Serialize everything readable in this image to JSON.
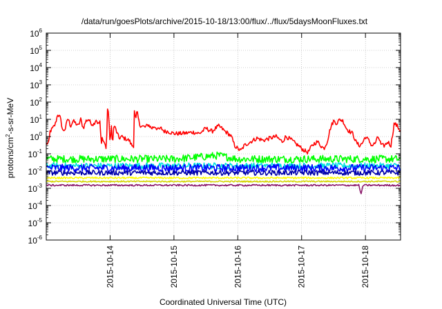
{
  "chart_data": {
    "type": "line",
    "title": "/data/run/goesPlots/archive/2015-10-18/13:00/flux/../flux/5daysMoonFluxes.txt",
    "xlabel": "Coordinated Universal Time (UTC)",
    "ylabel": {
      "base": "protons/cm",
      "sup": "2",
      "suffix": "-s-sr-MeV"
    },
    "y_scale": "log",
    "ylim_exponents": [
      -6,
      6
    ],
    "y_tick_labels": [
      {
        "base": "10",
        "exp": "-6"
      },
      {
        "base": "10",
        "exp": "-5"
      },
      {
        "base": "10",
        "exp": "-4"
      },
      {
        "base": "10",
        "exp": "-3"
      },
      {
        "base": "10",
        "exp": "-2"
      },
      {
        "base": "10",
        "exp": "-1"
      },
      {
        "base": "10",
        "exp": "0"
      },
      {
        "base": "10",
        "exp": "1"
      },
      {
        "base": "10",
        "exp": "2"
      },
      {
        "base": "10",
        "exp": "3"
      },
      {
        "base": "10",
        "exp": "4"
      },
      {
        "base": "10",
        "exp": "5"
      },
      {
        "base": "10",
        "exp": "6"
      }
    ],
    "xlim_days": [
      0,
      5.55
    ],
    "x_ticks": [
      {
        "label": "2015-10-14",
        "day": 1
      },
      {
        "label": "2015-10-15",
        "day": 2
      },
      {
        "label": "2015-10-16",
        "day": 3
      },
      {
        "label": "2015-10-17",
        "day": 4
      },
      {
        "label": "2015-10-18",
        "day": 5
      }
    ],
    "grid": true,
    "legend": "none",
    "series": [
      {
        "color": "#ff0000",
        "noise": 0.12,
        "points": [
          [
            0,
            0.4
          ],
          [
            0.04,
            0.4
          ],
          [
            0.06,
            2
          ],
          [
            0.1,
            3
          ],
          [
            0.14,
            5
          ],
          [
            0.18,
            20
          ],
          [
            0.22,
            12
          ],
          [
            0.26,
            2
          ],
          [
            0.3,
            3
          ],
          [
            0.34,
            12
          ],
          [
            0.38,
            4
          ],
          [
            0.42,
            8
          ],
          [
            0.46,
            6
          ],
          [
            0.5,
            4
          ],
          [
            0.54,
            10
          ],
          [
            0.58,
            3
          ],
          [
            0.62,
            8
          ],
          [
            0.66,
            10
          ],
          [
            0.7,
            6
          ],
          [
            0.74,
            5
          ],
          [
            0.78,
            10
          ],
          [
            0.82,
            5
          ],
          [
            0.84,
            8
          ],
          [
            0.86,
            0.3
          ],
          [
            0.88,
            1
          ],
          [
            0.9,
            0.5
          ],
          [
            0.92,
            0.4
          ],
          [
            0.94,
            0.15
          ],
          [
            0.96,
            40
          ],
          [
            0.98,
            15
          ],
          [
            1.0,
            0.3
          ],
          [
            1.02,
            4
          ],
          [
            1.04,
            0.35
          ],
          [
            1.06,
            5
          ],
          [
            1.1,
            2
          ],
          [
            1.14,
            0.8
          ],
          [
            1.18,
            1
          ],
          [
            1.22,
            0.8
          ],
          [
            1.26,
            0.7
          ],
          [
            1.3,
            0.6
          ],
          [
            1.34,
            0.3
          ],
          [
            1.37,
            0.3
          ],
          [
            1.38,
            35
          ],
          [
            1.4,
            8
          ],
          [
            1.42,
            30
          ],
          [
            1.46,
            5
          ],
          [
            1.5,
            4
          ],
          [
            1.55,
            3.5
          ],
          [
            1.6,
            5
          ],
          [
            1.65,
            3
          ],
          [
            1.7,
            4
          ],
          [
            1.75,
            2.5
          ],
          [
            1.8,
            3
          ],
          [
            1.85,
            2
          ],
          [
            1.9,
            2
          ],
          [
            2.0,
            1.5
          ],
          [
            2.1,
            1.5
          ],
          [
            2.2,
            1.6
          ],
          [
            2.3,
            1.8
          ],
          [
            2.4,
            1.5
          ],
          [
            2.5,
            3
          ],
          [
            2.6,
            2
          ],
          [
            2.65,
            3
          ],
          [
            2.7,
            4
          ],
          [
            2.75,
            3
          ],
          [
            2.8,
            2
          ],
          [
            2.85,
            1.5
          ],
          [
            2.9,
            1
          ],
          [
            2.95,
            0.3
          ],
          [
            3.0,
            0.2
          ],
          [
            3.05,
            0.15
          ],
          [
            3.1,
            0.3
          ],
          [
            3.2,
            0.5
          ],
          [
            3.3,
            0.8
          ],
          [
            3.4,
            0.6
          ],
          [
            3.5,
            0.8
          ],
          [
            3.6,
            1
          ],
          [
            3.65,
            0.7
          ],
          [
            3.7,
            0.5
          ],
          [
            3.75,
            1
          ],
          [
            3.8,
            0.8
          ],
          [
            3.85,
            0.6
          ],
          [
            3.9,
            0.4
          ],
          [
            3.95,
            0.3
          ],
          [
            4.0,
            0.2
          ],
          [
            4.05,
            0.15
          ],
          [
            4.1,
            0.12
          ],
          [
            4.15,
            0.25
          ],
          [
            4.2,
            0.4
          ],
          [
            4.25,
            0.5
          ],
          [
            4.3,
            0.3
          ],
          [
            4.35,
            0.2
          ],
          [
            4.4,
            0.5
          ],
          [
            4.45,
            3
          ],
          [
            4.5,
            8
          ],
          [
            4.55,
            6
          ],
          [
            4.6,
            10
          ],
          [
            4.65,
            8
          ],
          [
            4.7,
            3
          ],
          [
            4.75,
            2
          ],
          [
            4.8,
            1.5
          ],
          [
            4.85,
            0.5
          ],
          [
            4.9,
            0.3
          ],
          [
            4.95,
            0.4
          ],
          [
            5.0,
            1
          ],
          [
            5.05,
            0.6
          ],
          [
            5.1,
            0.3
          ],
          [
            5.15,
            0.4
          ],
          [
            5.2,
            1
          ],
          [
            5.25,
            0.3
          ],
          [
            5.3,
            0.3
          ],
          [
            5.35,
            0.5
          ],
          [
            5.4,
            0.3
          ],
          [
            5.45,
            6
          ],
          [
            5.5,
            4
          ],
          [
            5.55,
            2
          ]
        ]
      },
      {
        "color": "#00ff00",
        "noise": 0.22,
        "points": [
          [
            0,
            0.05
          ],
          [
            1.0,
            0.05
          ],
          [
            2.0,
            0.05
          ],
          [
            2.7,
            0.08
          ],
          [
            3.0,
            0.05
          ],
          [
            4.0,
            0.05
          ],
          [
            5.0,
            0.05
          ],
          [
            5.55,
            0.05
          ]
        ]
      },
      {
        "color": "#00e0e0",
        "noise": 0.18,
        "points": [
          [
            0,
            0.02
          ],
          [
            2.0,
            0.02
          ],
          [
            3.0,
            0.02
          ],
          [
            4.0,
            0.02
          ],
          [
            5.0,
            0.02
          ],
          [
            5.55,
            0.02
          ]
        ]
      },
      {
        "color": "#0000ff",
        "noise": 0.22,
        "points": [
          [
            0,
            0.015
          ],
          [
            1.0,
            0.015
          ],
          [
            2.0,
            0.015
          ],
          [
            3.0,
            0.015
          ],
          [
            4.0,
            0.015
          ],
          [
            5.0,
            0.015
          ],
          [
            5.55,
            0.015
          ]
        ]
      },
      {
        "color": "#0000aa",
        "noise": 0.15,
        "points": [
          [
            0,
            0.008
          ],
          [
            2.0,
            0.008
          ],
          [
            4.0,
            0.008
          ],
          [
            5.55,
            0.008
          ]
        ]
      },
      {
        "color": "#ffff00",
        "noise": 0.05,
        "points": [
          [
            0,
            0.004
          ],
          [
            5.55,
            0.004
          ]
        ]
      },
      {
        "color": "#d4d400",
        "noise": 0.04,
        "points": [
          [
            0,
            0.0025
          ],
          [
            5.55,
            0.0025
          ]
        ]
      },
      {
        "color": "#8b1a6b",
        "noise": 0.05,
        "points": [
          [
            0,
            0.0015
          ],
          [
            4.9,
            0.0015
          ],
          [
            4.93,
            0.0004
          ],
          [
            4.96,
            0.0015
          ],
          [
            5.55,
            0.0015
          ]
        ]
      }
    ]
  }
}
